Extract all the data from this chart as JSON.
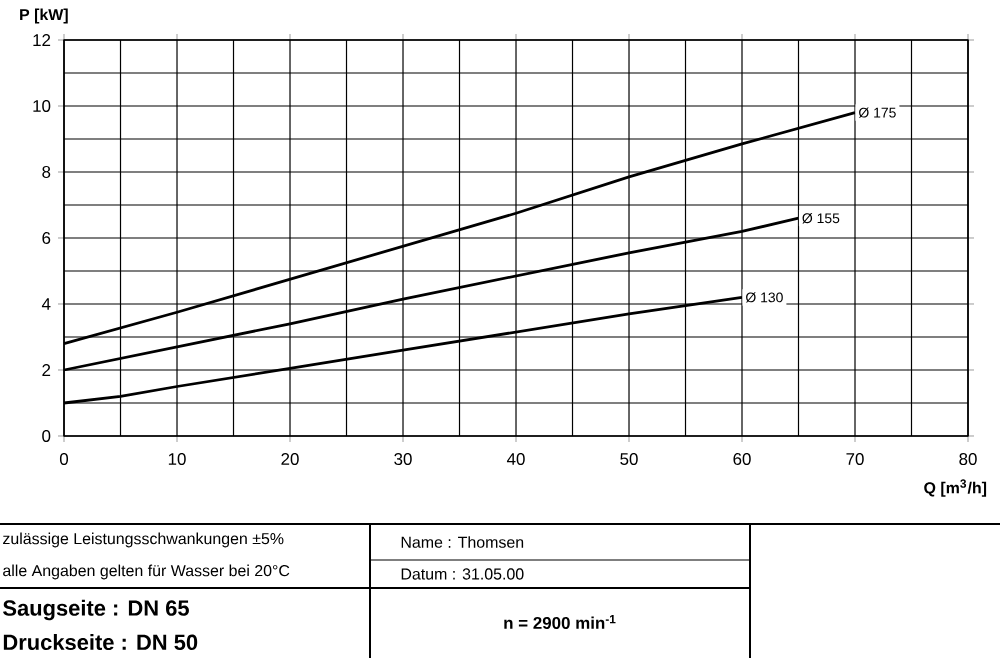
{
  "chart_data": {
    "type": "line",
    "ylabel": "P [kW]",
    "xlabel": "Q [m$^{3}$/h]",
    "xlim": [
      0,
      80
    ],
    "ylim": [
      0,
      12
    ],
    "xticks": [
      0,
      10,
      20,
      30,
      40,
      50,
      60,
      70,
      80
    ],
    "yticks": [
      0,
      2,
      4,
      6,
      8,
      10,
      12
    ],
    "grid": true,
    "series": [
      {
        "color": "#000000",
        "x": [
          0,
          10,
          20,
          30,
          40,
          50,
          60,
          70
        ],
        "values": [
          2.8,
          3.75,
          4.75,
          5.75,
          6.75,
          7.85,
          8.85,
          9.8
        ]
      },
      {
        "color": "#000000",
        "x": [
          0,
          10,
          20,
          30,
          40,
          50,
          60,
          65
        ],
        "values": [
          2.0,
          2.7,
          3.4,
          4.15,
          4.85,
          5.55,
          6.2,
          6.6
        ]
      },
      {
        "color": "#000000",
        "x": [
          0,
          5,
          10,
          20,
          30,
          40,
          50,
          60
        ],
        "values": [
          1.0,
          1.2,
          1.5,
          2.05,
          2.6,
          3.15,
          3.7,
          4.2
        ]
      }
    ],
    "annotations": [
      {
        "text": "Ø 175",
        "x": 70,
        "y": 9.8
      },
      {
        "text": "Ø 155",
        "x": 65,
        "y": 6.6
      },
      {
        "text": "Ø 130",
        "x": 60,
        "y": 4.2
      },
      "zulässige Leistungsschwankungen ±5%",
      "alle Angaben gelten für Wasser bei 20°C",
      "Name : Thomsen",
      "Datum : 31.05.00",
      "Saugseite : DN 65",
      "Druckseite : DN 50",
      "n = 2900 min$^{-1}$"
    ]
  }
}
